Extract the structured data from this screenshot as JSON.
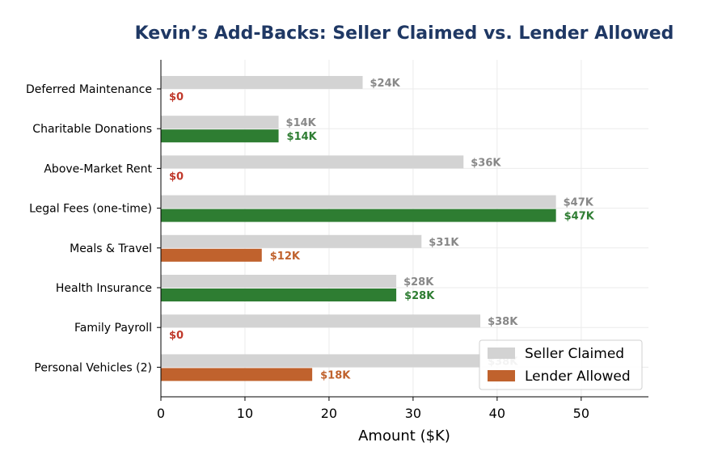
{
  "chart_data": {
    "type": "bar",
    "orientation": "horizontal",
    "title": "Kevin’s Add-Backs: Seller Claimed vs. Lender Allowed",
    "xlabel": "Amount ($K)",
    "ylabel": "",
    "xlim": [
      0,
      58
    ],
    "xticks": [
      0,
      10,
      20,
      30,
      40,
      50
    ],
    "grid": true,
    "legend_position": "bottom-right",
    "categories": [
      "Deferred Maintenance",
      "Charitable Donations",
      "Above-Market Rent",
      "Legal Fees (one-time)",
      "Meals & Travel",
      "Health Insurance",
      "Family Payroll",
      "Personal Vehicles (2)"
    ],
    "series": [
      {
        "name": "Seller Claimed",
        "color": "#d3d3d3",
        "label_color": "#888888",
        "values": [
          24,
          14,
          36,
          47,
          31,
          28,
          38,
          38
        ],
        "labels": [
          "$24K",
          "$14K",
          "$36K",
          "$47K",
          "$31K",
          "$28K",
          "$38K",
          "$38K"
        ]
      },
      {
        "name": "Lender Allowed",
        "values": [
          0,
          14,
          0,
          47,
          12,
          28,
          0,
          18
        ],
        "labels": [
          "$0",
          "$14K",
          "$0",
          "$47K",
          "$12K",
          "$28K",
          "$0",
          "$18K"
        ],
        "colors": [
          "#c0392b",
          "#2e7d32",
          "#c0392b",
          "#2e7d32",
          "#c0622d",
          "#2e7d32",
          "#c0392b",
          "#c0622d"
        ],
        "legend_color": "#c0622d"
      }
    ]
  }
}
